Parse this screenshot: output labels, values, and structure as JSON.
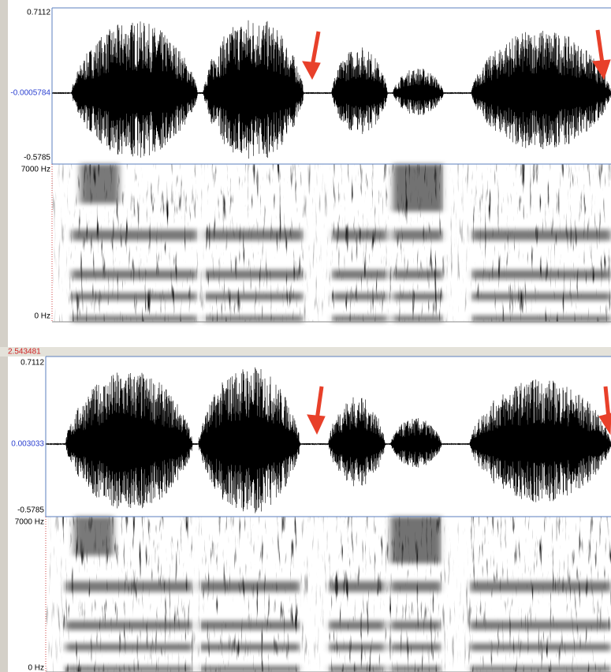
{
  "panels": [
    {
      "wave": {
        "max": "0.7112",
        "center": "-0.0005784",
        "min": "-0.5785"
      },
      "spectrogram": {
        "max": "7000 Hz",
        "min": "0 Hz"
      }
    },
    {
      "cursor": "2.543481",
      "wave": {
        "max": "0.7112",
        "center": "0.003033",
        "min": "-0.5785"
      },
      "spectrogram": {
        "max": "7000 Hz",
        "min": "0 Hz"
      }
    }
  ]
}
